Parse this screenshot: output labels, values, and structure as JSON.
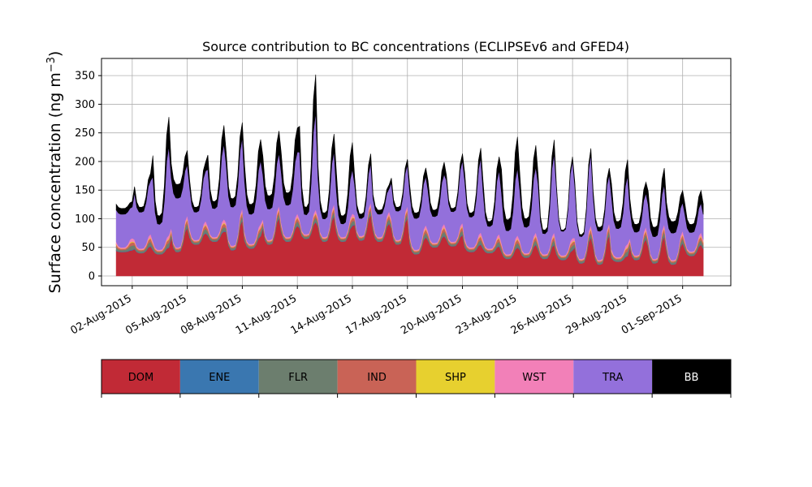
{
  "chart_data": {
    "type": "area",
    "stacked": true,
    "title": "Source contribution to BC concentrations (ECLIPSEv6 and GFED4)",
    "ylabel_text": "Surface concentration (ng m",
    "ylabel_sup": "−3",
    "ylabel_close": ")",
    "xlabel": "",
    "ylim": [
      -17,
      380
    ],
    "xlim": [
      -0.8,
      33.5
    ],
    "grid": true,
    "x_start_offset": 0,
    "x_step": 0.125,
    "xticks": [
      {
        "pos": 0.875,
        "label": "02-Aug-2015"
      },
      {
        "pos": 3.875,
        "label": "05-Aug-2015"
      },
      {
        "pos": 6.875,
        "label": "08-Aug-2015"
      },
      {
        "pos": 9.875,
        "label": "11-Aug-2015"
      },
      {
        "pos": 12.875,
        "label": "14-Aug-2015"
      },
      {
        "pos": 15.875,
        "label": "17-Aug-2015"
      },
      {
        "pos": 18.875,
        "label": "20-Aug-2015"
      },
      {
        "pos": 21.875,
        "label": "23-Aug-2015"
      },
      {
        "pos": 24.875,
        "label": "26-Aug-2015"
      },
      {
        "pos": 27.875,
        "label": "29-Aug-2015"
      },
      {
        "pos": 30.875,
        "label": "01-Sep-2015"
      }
    ],
    "yticks": [
      0,
      50,
      100,
      150,
      200,
      250,
      300,
      350
    ],
    "legend_placement": "colorbar-below",
    "series": [
      {
        "name": "DOM",
        "color": "#c12a36",
        "text_color": "#000000"
      },
      {
        "name": "ENE",
        "color": "#3a77b0",
        "text_color": "#000000"
      },
      {
        "name": "FLR",
        "color": "#6c7e6e",
        "text_color": "#000000"
      },
      {
        "name": "IND",
        "color": "#c96356",
        "text_color": "#000000"
      },
      {
        "name": "SHP",
        "color": "#e7d02f",
        "text_color": "#000000"
      },
      {
        "name": "WST",
        "color": "#f280b8",
        "text_color": "#000000"
      },
      {
        "name": "TRA",
        "color": "#9370db",
        "text_color": "#000000"
      },
      {
        "name": "BB",
        "color": "#000000",
        "text_color": "#ffffff"
      }
    ],
    "daily_dom_peak": [
      45,
      52,
      50,
      85,
      75,
      78,
      98,
      70,
      102,
      88,
      95,
      105,
      88,
      108,
      92,
      102,
      68,
      70,
      72,
      55,
      52,
      50,
      55,
      55,
      45,
      68,
      72,
      35,
      65,
      70,
      58,
      55
    ],
    "daily_dom_base": [
      42,
      40,
      38,
      42,
      55,
      60,
      45,
      48,
      55,
      60,
      65,
      60,
      60,
      62,
      60,
      55,
      38,
      50,
      52,
      42,
      40,
      30,
      32,
      30,
      28,
      22,
      20,
      25,
      28,
      22,
      20,
      35
    ],
    "daily_total_peak": [
      130,
      180,
      280,
      220,
      200,
      265,
      270,
      240,
      255,
      260,
      355,
      250,
      235,
      215,
      160,
      205,
      190,
      200,
      215,
      225,
      210,
      245,
      230,
      240,
      210,
      225,
      190,
      205,
      165,
      190,
      150,
      150
    ],
    "daily_total_base": [
      118,
      120,
      105,
      160,
      120,
      130,
      135,
      125,
      140,
      145,
      120,
      110,
      105,
      108,
      115,
      120,
      110,
      115,
      118,
      110,
      95,
      98,
      100,
      80,
      80,
      72,
      85,
      95,
      90,
      85,
      95,
      90
    ],
    "daily_tra_frac": [
      0.85,
      0.88,
      0.75,
      0.78,
      0.85,
      0.8,
      0.82,
      0.75,
      0.7,
      0.72,
      0.72,
      0.75,
      0.62,
      0.8,
      0.85,
      0.88,
      0.85,
      0.8,
      0.9,
      0.88,
      0.82,
      0.68,
      0.75,
      0.85,
      0.95,
      0.92,
      0.88,
      0.8,
      0.75,
      0.7,
      0.7,
      0.7
    ]
  }
}
